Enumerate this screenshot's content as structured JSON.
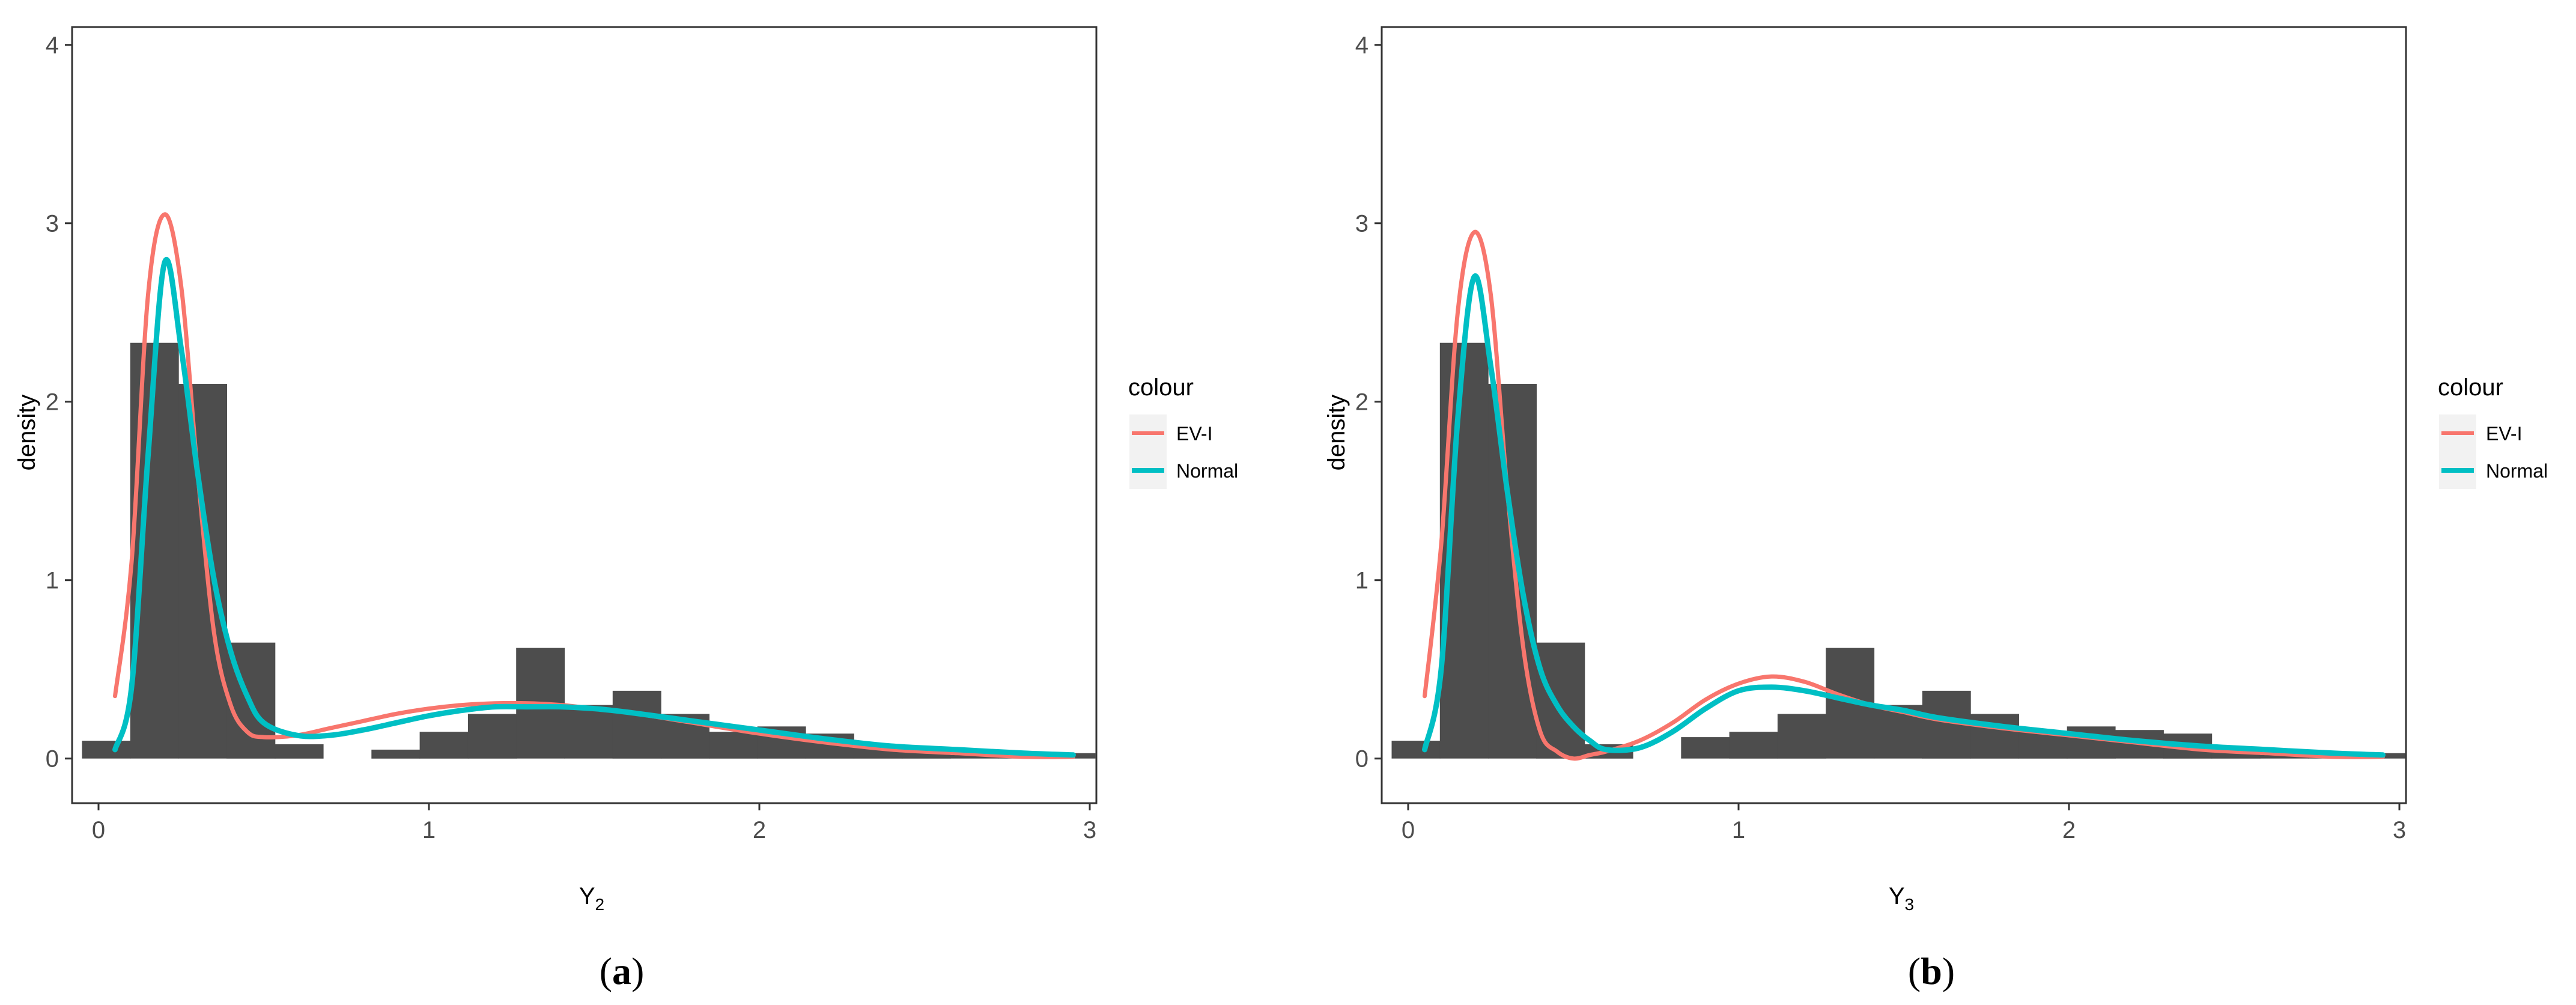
{
  "colors": {
    "ev1": "#F8766D",
    "normal": "#00BFC4",
    "bars": "#4d4d4d",
    "panel_border": "#333333",
    "legend_key_bg": "#f2f2f2"
  },
  "chart_data": [
    {
      "type": "histogram",
      "panel_label": "(a)",
      "panel_letter": "a",
      "xlabel": "Y",
      "xlabel_sub": "2",
      "ylabel": "density",
      "xlim": [
        -0.08,
        3.02
      ],
      "ylim": [
        -0.25,
        4.1
      ],
      "x_ticks": [
        0,
        1,
        2,
        3
      ],
      "y_ticks": [
        0,
        1,
        2,
        3,
        4
      ],
      "grid": false,
      "legend": {
        "title": "colour",
        "position": "right",
        "entries": [
          "EV-I",
          "Normal"
        ]
      },
      "histogram": {
        "bin_width": 0.146,
        "start": -0.05,
        "heights": [
          0.1,
          2.33,
          2.1,
          0.65,
          0.08,
          0.0,
          0.05,
          0.15,
          0.25,
          0.62,
          0.3,
          0.38,
          0.25,
          0.15,
          0.18,
          0.14,
          0.07,
          0.04,
          0.02,
          0.03,
          0.03
        ]
      },
      "series": [
        {
          "name": "EV-I",
          "color": "#F8766D",
          "x": [
            0.05,
            0.1,
            0.15,
            0.2,
            0.25,
            0.3,
            0.35,
            0.4,
            0.45,
            0.5,
            0.6,
            0.7,
            0.8,
            0.9,
            1.0,
            1.1,
            1.2,
            1.3,
            1.4,
            1.5,
            1.6,
            1.8,
            2.0,
            2.2,
            2.4,
            2.6,
            2.8,
            2.95
          ],
          "y": [
            0.35,
            1.1,
            2.6,
            3.05,
            2.65,
            1.6,
            0.7,
            0.3,
            0.15,
            0.12,
            0.13,
            0.17,
            0.21,
            0.25,
            0.28,
            0.3,
            0.31,
            0.31,
            0.3,
            0.28,
            0.26,
            0.2,
            0.14,
            0.09,
            0.05,
            0.03,
            0.01,
            0.01
          ]
        },
        {
          "name": "Normal",
          "color": "#00BFC4",
          "x": [
            0.05,
            0.1,
            0.15,
            0.2,
            0.25,
            0.3,
            0.35,
            0.4,
            0.45,
            0.5,
            0.6,
            0.7,
            0.8,
            0.9,
            1.0,
            1.1,
            1.2,
            1.3,
            1.4,
            1.5,
            1.6,
            1.8,
            2.0,
            2.2,
            2.4,
            2.6,
            2.8,
            2.95
          ],
          "y": [
            0.05,
            0.4,
            1.7,
            2.78,
            2.3,
            1.6,
            1.0,
            0.6,
            0.35,
            0.2,
            0.13,
            0.13,
            0.16,
            0.2,
            0.24,
            0.27,
            0.29,
            0.29,
            0.29,
            0.28,
            0.26,
            0.21,
            0.16,
            0.11,
            0.07,
            0.05,
            0.03,
            0.02
          ]
        }
      ]
    },
    {
      "type": "histogram",
      "panel_label": "(b)",
      "panel_letter": "b",
      "xlabel": "Y",
      "xlabel_sub": "3",
      "ylabel": "density",
      "xlim": [
        -0.08,
        3.02
      ],
      "ylim": [
        -0.25,
        4.1
      ],
      "x_ticks": [
        0,
        1,
        2,
        3
      ],
      "y_ticks": [
        0,
        1,
        2,
        3,
        4
      ],
      "grid": false,
      "legend": {
        "title": "colour",
        "position": "right",
        "entries": [
          "EV-I",
          "Normal"
        ]
      },
      "histogram": {
        "bin_width": 0.146,
        "start": -0.05,
        "heights": [
          0.1,
          2.33,
          2.1,
          0.65,
          0.08,
          0.0,
          0.12,
          0.15,
          0.25,
          0.62,
          0.3,
          0.38,
          0.25,
          0.15,
          0.18,
          0.16,
          0.14,
          0.04,
          0.02,
          0.03,
          0.03
        ]
      },
      "series": [
        {
          "name": "EV-I",
          "color": "#F8766D",
          "x": [
            0.05,
            0.1,
            0.15,
            0.2,
            0.25,
            0.3,
            0.35,
            0.4,
            0.45,
            0.5,
            0.55,
            0.6,
            0.7,
            0.8,
            0.9,
            1.0,
            1.1,
            1.2,
            1.3,
            1.4,
            1.5,
            1.6,
            1.8,
            2.0,
            2.2,
            2.4,
            2.6,
            2.8,
            2.95
          ],
          "y": [
            0.35,
            1.2,
            2.5,
            2.95,
            2.6,
            1.5,
            0.6,
            0.15,
            0.04,
            0.0,
            0.02,
            0.04,
            0.1,
            0.2,
            0.33,
            0.42,
            0.46,
            0.43,
            0.36,
            0.3,
            0.26,
            0.22,
            0.17,
            0.13,
            0.09,
            0.05,
            0.03,
            0.01,
            0.01
          ]
        },
        {
          "name": "Normal",
          "color": "#00BFC4",
          "x": [
            0.05,
            0.1,
            0.15,
            0.2,
            0.25,
            0.3,
            0.35,
            0.4,
            0.45,
            0.5,
            0.55,
            0.6,
            0.7,
            0.8,
            0.9,
            1.0,
            1.1,
            1.2,
            1.3,
            1.4,
            1.5,
            1.6,
            1.8,
            2.0,
            2.2,
            2.4,
            2.6,
            2.8,
            2.95
          ],
          "y": [
            0.05,
            0.5,
            1.9,
            2.7,
            2.2,
            1.5,
            0.9,
            0.5,
            0.3,
            0.18,
            0.1,
            0.05,
            0.06,
            0.15,
            0.28,
            0.38,
            0.4,
            0.38,
            0.34,
            0.3,
            0.27,
            0.23,
            0.18,
            0.14,
            0.1,
            0.07,
            0.05,
            0.03,
            0.02
          ]
        }
      ]
    }
  ]
}
